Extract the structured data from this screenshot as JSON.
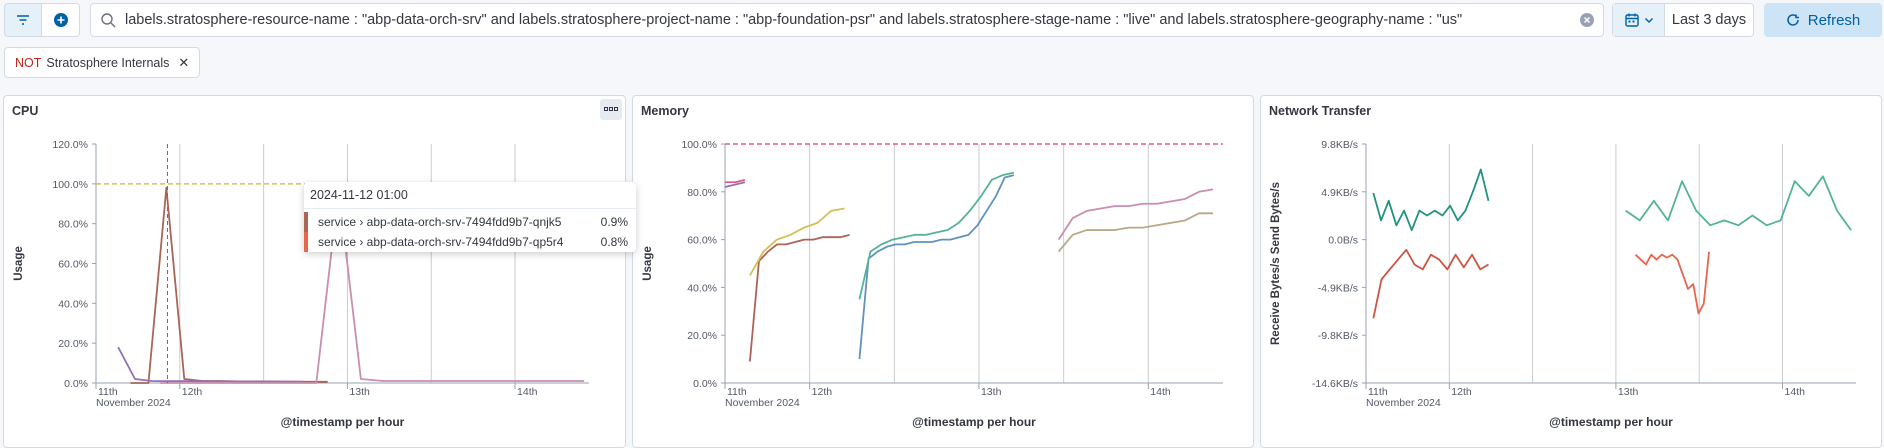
{
  "toolbar": {
    "query": "labels.stratosphere-resource-name : \"abp-data-orch-srv\" and labels.stratosphere-project-name : \"abp-foundation-psr\" and labels.stratosphere-stage-name : \"live\" and labels.stratosphere-geography-name : \"us\"",
    "time_range": "Last 3 days",
    "refresh_label": "Refresh"
  },
  "filter_pill": {
    "negation": "NOT",
    "label": "Stratosphere Internals"
  },
  "colors": {
    "accent": "#0061a6",
    "series": [
      "#d36086",
      "#9170b8",
      "#ca8eae",
      "#d6bf57",
      "#b9a888",
      "#da8b45",
      "#aa6556",
      "#e7664c",
      "#6092c0",
      "#54b399",
      "#209280",
      "#cc5642"
    ]
  },
  "chart_data": [
    {
      "type": "line",
      "title": "CPU",
      "xlabel": "@timestamp per hour",
      "ylabel": "Usage",
      "ylim": [
        0,
        120
      ],
      "y_ticks": [
        "0.0%",
        "20.0%",
        "40.0%",
        "60.0%",
        "80.0%",
        "100.0%",
        "120.0%"
      ],
      "x_ticks": [
        "11th",
        "12th",
        "13th",
        "14th"
      ],
      "x_sub": "November 2024",
      "threshold": 100,
      "series": [
        {
          "values": [
            0,
            0,
            98,
            2,
            1,
            1,
            0.8,
            0.8,
            0.7,
            0.7,
            0.6,
            0.6
          ]
        },
        {
          "values": [
            18,
            2,
            1,
            0.9,
            0.9,
            0.9,
            0.8,
            0.8,
            0.8,
            0.8,
            0.7,
            0.7
          ]
        },
        {
          "values": [
            0,
            0,
            0,
            0,
            0,
            0,
            0,
            0,
            97,
            2,
            1,
            1,
            1,
            1,
            1,
            1,
            1,
            1,
            1,
            1
          ]
        }
      ]
    },
    {
      "type": "line",
      "title": "Memory",
      "xlabel": "@timestamp per hour",
      "ylabel": "Usage",
      "ylim": [
        0,
        100
      ],
      "y_ticks": [
        "0.0%",
        "20.0%",
        "40.0%",
        "60.0%",
        "80.0%",
        "100.0%"
      ],
      "x_ticks": [
        "11th",
        "12th",
        "13th",
        "14th"
      ],
      "x_sub": "November 2024",
      "threshold": 100,
      "series": [
        {
          "values": [
            84,
            84,
            85
          ]
        },
        {
          "values": [
            82,
            83,
            84
          ]
        },
        {
          "values": [
            9,
            51,
            55,
            58,
            58,
            59,
            60,
            60,
            61,
            61,
            61,
            62
          ]
        },
        {
          "values": [
            45,
            55,
            60,
            62,
            65,
            67,
            72,
            73
          ]
        },
        {
          "values": [
            10,
            52,
            55,
            57,
            58,
            58,
            59,
            59,
            59,
            60,
            60,
            61,
            62,
            66,
            72,
            78,
            86,
            87
          ]
        },
        {
          "values": [
            35,
            55,
            58,
            60,
            61,
            62,
            62,
            63,
            64,
            67,
            72,
            78,
            85,
            87,
            88
          ]
        },
        {
          "values": [
            60,
            69,
            72,
            73,
            74,
            74,
            75,
            75,
            76,
            77,
            80,
            81
          ]
        },
        {
          "values": [
            55,
            62,
            64,
            64,
            64,
            65,
            65,
            66,
            67,
            68,
            71,
            71
          ]
        }
      ]
    },
    {
      "type": "line",
      "title": "Network Transfer",
      "xlabel": "@timestamp per hour",
      "ylabel": "Receive Bytes/s Send Bytes/s",
      "ylim": [
        -14.6,
        9.8
      ],
      "y_ticks": [
        "-14.6KB/s",
        "-9.8KB/s",
        "-4.9KB/s",
        "0.0B/s",
        "4.9KB/s",
        "9.8KB/s"
      ],
      "x_ticks": [
        "11th",
        "12th",
        "13th",
        "14th"
      ],
      "x_sub": "November 2024",
      "series": [
        {
          "values": [
            4.8,
            2,
            4,
            1.5,
            3,
            1,
            3,
            2.5,
            3,
            2.5,
            3.5,
            2,
            3,
            5,
            7.2,
            4
          ]
        },
        {
          "values": [
            3,
            2,
            4,
            2,
            6,
            3,
            1.5,
            2,
            1.5,
            2.5,
            1.5,
            2,
            6,
            4.5,
            6.5,
            3,
            1
          ]
        },
        {
          "values": [
            -8,
            -4,
            -3,
            -2,
            -1,
            -2.5,
            -3,
            -1.5,
            -2,
            -3,
            -1.5,
            -2.8,
            -1.5,
            -3,
            -2.5
          ]
        },
        {
          "values": [
            -1.5,
            -2,
            -2.5,
            -1.5,
            -2,
            -1.5,
            -1.8,
            -1.5,
            -2,
            -3.5,
            -5,
            -4.5,
            -7.5,
            -6.5,
            -1.2
          ]
        }
      ]
    }
  ],
  "tooltip": {
    "title": "2024-11-12 01:00",
    "rows": [
      {
        "label": "service › abp-data-orch-srv-7494fdd9b7-qnjk5",
        "value": "0.9%",
        "color": "#aa6556"
      },
      {
        "label": "service › abp-data-orch-srv-7494fdd9b7-qp5r4",
        "value": "0.8%",
        "color": "#e7664c"
      }
    ]
  }
}
